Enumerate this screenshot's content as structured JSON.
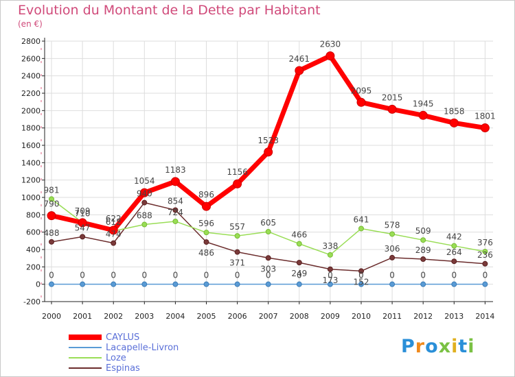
{
  "title": "Evolution du Montant de la Dette par Habitant",
  "unit_label": "(en €)",
  "logo_text": "Proxiti",
  "colors": {
    "title": "#d04a7a",
    "caylus": "#ff0000",
    "lacapelle": "#5a9bd5",
    "loze": "#99dd55",
    "espinas": "#6b2c2c",
    "grid": "#dddddd",
    "axis": "#222222"
  },
  "chart_data": {
    "type": "line",
    "title": "Evolution du Montant de la Dette par Habitant",
    "ylabel": "(en €)",
    "xlabel": "",
    "x": [
      "2000",
      "2001",
      "2002",
      "2003",
      "2004",
      "2005",
      "2006",
      "2007",
      "2008",
      "2009",
      "2010",
      "2011",
      "2012",
      "2013",
      "2014"
    ],
    "ylim": [
      -200,
      2800
    ],
    "yticks": [
      -200,
      0,
      200,
      400,
      600,
      800,
      1000,
      1200,
      1400,
      1600,
      1800,
      2000,
      2200,
      2400,
      2600,
      2800
    ],
    "grid": true,
    "legend_position": "bottom-left",
    "series": [
      {
        "name": "CAYLUS",
        "color": "#ff0000",
        "values": [
          790,
          709,
          622,
          1054,
          1183,
          896,
          1156,
          1523,
          2461,
          2630,
          2095,
          2015,
          1945,
          1858,
          1801
        ]
      },
      {
        "name": "Lacapelle-Livron",
        "color": "#5a9bd5",
        "values": [
          0,
          0,
          0,
          0,
          0,
          0,
          0,
          0,
          0,
          0,
          0,
          0,
          0,
          0,
          0
        ]
      },
      {
        "name": "Loze",
        "color": "#99dd55",
        "values": [
          981,
          710,
          612,
          688,
          724,
          596,
          557,
          605,
          466,
          338,
          641,
          578,
          509,
          442,
          376
        ]
      },
      {
        "name": "Espinas",
        "color": "#6b2c2c",
        "values": [
          488,
          547,
          474,
          940,
          854,
          486,
          371,
          303,
          249,
          173,
          152,
          306,
          289,
          264,
          236
        ]
      }
    ]
  }
}
